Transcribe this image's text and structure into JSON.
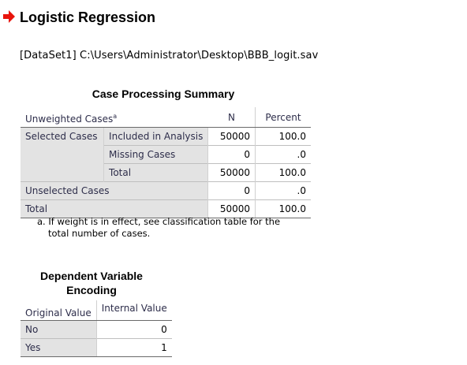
{
  "header": {
    "title": "Logistic Regression",
    "dataset_path": "[DataSet1] C:\\Users\\Administrator\\Desktop\\BBB_logit.sav",
    "arrow_color": "#e8140c",
    "arrow_icon": "red-arrow-icon"
  },
  "case_summary": {
    "title": "Case Processing Summary",
    "corner_label": "Unweighted Cases",
    "corner_sup": "a",
    "col_n": "N",
    "col_percent": "Percent",
    "selected_label": "Selected Cases",
    "rows": [
      {
        "sub": "Included in Analysis",
        "n": "50000",
        "pct": "100.0"
      },
      {
        "sub": "Missing Cases",
        "n": "0",
        "pct": ".0"
      },
      {
        "sub": "Total",
        "n": "50000",
        "pct": "100.0"
      }
    ],
    "unselected": {
      "label": "Unselected Cases",
      "n": "0",
      "pct": ".0"
    },
    "total": {
      "label": "Total",
      "n": "50000",
      "pct": "100.0"
    },
    "footnote": "a. If weight is in effect, see classification table for the total number of cases."
  },
  "encoding": {
    "title": "Dependent Variable Encoding",
    "col_original": "Original Value",
    "col_internal": "Internal Value",
    "rows": [
      {
        "original": "No",
        "internal": "0"
      },
      {
        "original": "Yes",
        "internal": "1"
      }
    ]
  }
}
